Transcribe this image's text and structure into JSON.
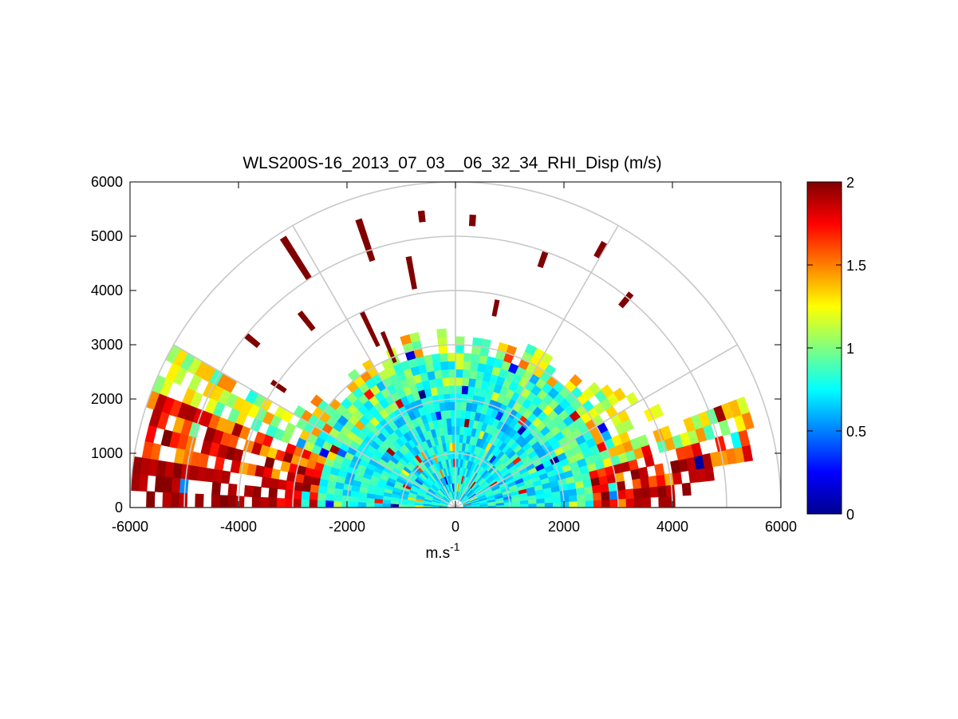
{
  "chart_data": {
    "type": "heatmap",
    "subtype": "polar RHI scan (half-disc)",
    "title": "WLS200S-16_2013_07_03__06_32_34_RHI_Disp (m/s)",
    "xlabel": "m.s",
    "xlabel_sup": "-1",
    "ylabel": "",
    "xlim": [
      -6000,
      6000
    ],
    "ylim": [
      0,
      6000
    ],
    "x_ticks": [
      "-6000",
      "-4000",
      "-2000",
      "0",
      "2000",
      "4000",
      "6000"
    ],
    "y_ticks": [
      "0",
      "1000",
      "2000",
      "3000",
      "4000",
      "5000",
      "6000"
    ],
    "polar_grid": {
      "range_rings": [
        1000,
        2000,
        3000,
        4000,
        5000,
        6000
      ],
      "spokes_deg": [
        0,
        30,
        60,
        90,
        120,
        150,
        180
      ]
    },
    "grid": true,
    "colorbar": {
      "colormap": "jet",
      "clim": [
        0,
        2
      ],
      "ticks": [
        "0",
        "0.5",
        "1",
        "1.5",
        "2"
      ],
      "position": "right"
    },
    "description_series": [
      {
        "region": "core (range < 3000)",
        "approx_value": 0.7
      },
      {
        "region": "low-elevation right beams (range 3000-5800)",
        "approx_value": 1.9
      },
      {
        "region": "low-elevation left beams (range 3000-6000)",
        "approx_value": 1.8
      }
    ]
  }
}
